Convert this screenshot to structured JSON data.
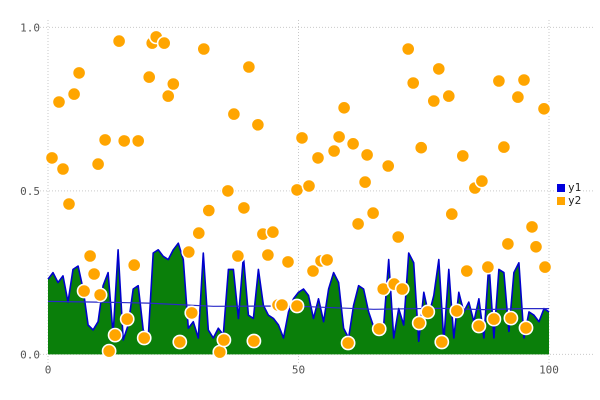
{
  "page": {
    "background": "#ffffff"
  },
  "legend": {
    "items": [
      {
        "label": "y1",
        "color": "#0000dd"
      },
      {
        "label": "y2",
        "color": "#ffa500"
      }
    ]
  },
  "colors": {
    "grid": "#c9c9c9",
    "tick_text": "#555555",
    "area_fill": "#0a7f0a",
    "area_line": "#0000cd",
    "trend_line": "#2a2ac8",
    "scatter_fill": "#ffa500",
    "scatter_edge": "#ffffff"
  },
  "chart_data": {
    "type": "mixed",
    "title": "",
    "xlabel": "",
    "ylabel": "",
    "xlim": [
      0,
      100
    ],
    "ylim": [
      0.0,
      1.0
    ],
    "grid": true,
    "grid_style": "dotted",
    "legend_position": "right-outside",
    "x_ticks": [
      {
        "value": 0,
        "label": "0"
      },
      {
        "value": 50,
        "label": "50"
      },
      {
        "value": 100,
        "label": "100"
      }
    ],
    "y_ticks": [
      {
        "value": 0.0,
        "label": "0.0"
      },
      {
        "value": 0.5,
        "label": "0.5"
      },
      {
        "value": 1.0,
        "label": "1.0"
      }
    ],
    "series": [
      {
        "name": "y1",
        "type": "area",
        "fill_color": "#0a7f0a",
        "line_color": "#0000cd",
        "x_start": 0,
        "x_step": 1,
        "values": [
          0.23,
          0.25,
          0.22,
          0.24,
          0.16,
          0.26,
          0.27,
          0.2,
          0.09,
          0.075,
          0.1,
          0.21,
          0.25,
          0.06,
          0.32,
          0.044,
          0.09,
          0.2,
          0.21,
          0.075,
          0.05,
          0.31,
          0.32,
          0.3,
          0.29,
          0.32,
          0.34,
          0.29,
          0.08,
          0.1,
          0.05,
          0.31,
          0.075,
          0.05,
          0.08,
          0.06,
          0.26,
          0.26,
          0.11,
          0.3,
          0.12,
          0.11,
          0.26,
          0.15,
          0.12,
          0.11,
          0.09,
          0.05,
          0.13,
          0.17,
          0.19,
          0.2,
          0.18,
          0.11,
          0.17,
          0.1,
          0.2,
          0.25,
          0.22,
          0.08,
          0.05,
          0.15,
          0.21,
          0.2,
          0.13,
          0.085,
          0.09,
          0.09,
          0.29,
          0.05,
          0.14,
          0.09,
          0.31,
          0.28,
          0.04,
          0.19,
          0.12,
          0.18,
          0.29,
          0.04,
          0.26,
          0.05,
          0.19,
          0.13,
          0.16,
          0.1,
          0.17,
          0.05,
          0.28,
          0.05,
          0.26,
          0.25,
          0.07,
          0.25,
          0.28,
          0.05,
          0.13,
          0.12,
          0.1,
          0.14,
          0.13
        ]
      },
      {
        "name": "y1-mean-line",
        "type": "line",
        "line_color": "#2a2ac8",
        "points": [
          [
            0,
            0.162
          ],
          [
            13,
            0.159
          ],
          [
            20,
            0.157
          ],
          [
            33,
            0.147
          ],
          [
            47,
            0.148
          ],
          [
            52,
            0.146
          ],
          [
            65,
            0.138
          ],
          [
            78,
            0.141
          ],
          [
            87,
            0.137
          ],
          [
            95,
            0.14
          ],
          [
            100,
            0.14
          ]
        ]
      },
      {
        "name": "y2",
        "type": "scatter",
        "marker_color": "#ffa500",
        "marker_edge": "#ffffff",
        "points": [
          [
            0.8,
            0.601
          ],
          [
            2.2,
            0.772
          ],
          [
            3.0,
            0.567
          ],
          [
            4.2,
            0.46
          ],
          [
            5.2,
            0.796
          ],
          [
            6.2,
            0.861
          ],
          [
            7.2,
            0.194
          ],
          [
            8.4,
            0.301
          ],
          [
            9.2,
            0.246
          ],
          [
            10.0,
            0.582
          ],
          [
            10.4,
            0.182
          ],
          [
            11.4,
            0.656
          ],
          [
            12.2,
            0.01
          ],
          [
            13.4,
            0.059
          ],
          [
            14.2,
            0.958
          ],
          [
            15.2,
            0.653
          ],
          [
            15.8,
            0.108
          ],
          [
            17.2,
            0.273
          ],
          [
            18.0,
            0.653
          ],
          [
            19.2,
            0.05
          ],
          [
            20.2,
            0.848
          ],
          [
            20.8,
            0.952
          ],
          [
            21.6,
            0.971
          ],
          [
            23.2,
            0.952
          ],
          [
            24.0,
            0.79
          ],
          [
            25.0,
            0.827
          ],
          [
            26.3,
            0.038
          ],
          [
            28.1,
            0.313
          ],
          [
            28.7,
            0.127
          ],
          [
            30.1,
            0.371
          ],
          [
            31.1,
            0.934
          ],
          [
            32.1,
            0.44
          ],
          [
            34.3,
            0.007
          ],
          [
            35.1,
            0.044
          ],
          [
            35.9,
            0.5
          ],
          [
            37.1,
            0.735
          ],
          [
            37.9,
            0.301
          ],
          [
            39.1,
            0.448
          ],
          [
            40.1,
            0.879
          ],
          [
            41.1,
            0.041
          ],
          [
            41.9,
            0.702
          ],
          [
            42.9,
            0.368
          ],
          [
            43.9,
            0.304
          ],
          [
            44.9,
            0.374
          ],
          [
            45.9,
            0.151
          ],
          [
            46.7,
            0.151
          ],
          [
            47.9,
            0.283
          ],
          [
            49.7,
            0.503
          ],
          [
            49.7,
            0.148
          ],
          [
            50.7,
            0.662
          ],
          [
            52.1,
            0.515
          ],
          [
            52.9,
            0.255
          ],
          [
            53.9,
            0.601
          ],
          [
            54.5,
            0.286
          ],
          [
            55.7,
            0.289
          ],
          [
            57.1,
            0.622
          ],
          [
            58.1,
            0.665
          ],
          [
            59.1,
            0.754
          ],
          [
            59.9,
            0.035
          ],
          [
            60.9,
            0.644
          ],
          [
            61.9,
            0.399
          ],
          [
            63.3,
            0.527
          ],
          [
            63.7,
            0.61
          ],
          [
            64.9,
            0.432
          ],
          [
            66.1,
            0.078
          ],
          [
            66.9,
            0.2
          ],
          [
            67.9,
            0.576
          ],
          [
            69.1,
            0.215
          ],
          [
            69.9,
            0.359
          ],
          [
            70.7,
            0.2
          ],
          [
            71.9,
            0.934
          ],
          [
            72.9,
            0.83
          ],
          [
            74.1,
            0.096
          ],
          [
            74.5,
            0.632
          ],
          [
            75.8,
            0.13
          ],
          [
            77.0,
            0.775
          ],
          [
            78.0,
            0.873
          ],
          [
            78.6,
            0.038
          ],
          [
            80.0,
            0.79
          ],
          [
            80.6,
            0.429
          ],
          [
            81.6,
            0.133
          ],
          [
            82.8,
            0.607
          ],
          [
            83.6,
            0.255
          ],
          [
            85.2,
            0.509
          ],
          [
            86.0,
            0.087
          ],
          [
            86.6,
            0.53
          ],
          [
            87.8,
            0.267
          ],
          [
            89.0,
            0.108
          ],
          [
            90.0,
            0.836
          ],
          [
            91.0,
            0.634
          ],
          [
            91.8,
            0.338
          ],
          [
            92.4,
            0.111
          ],
          [
            93.8,
            0.787
          ],
          [
            95.0,
            0.839
          ],
          [
            95.4,
            0.081
          ],
          [
            96.6,
            0.39
          ],
          [
            97.4,
            0.329
          ],
          [
            99.0,
            0.751
          ],
          [
            99.2,
            0.267
          ]
        ]
      }
    ]
  }
}
